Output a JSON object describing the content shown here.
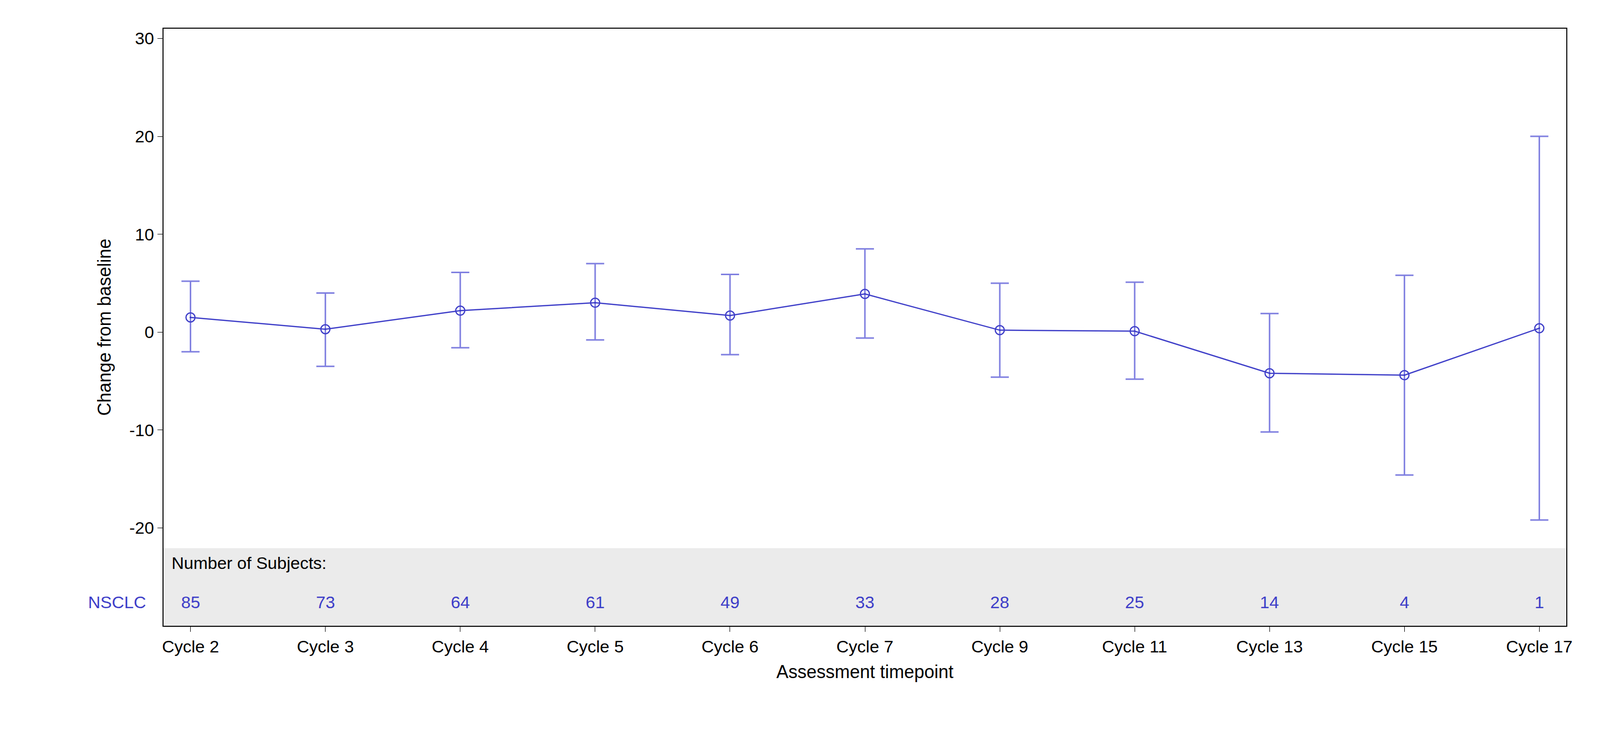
{
  "chart_data": {
    "type": "line",
    "x_label": "Assessment timepoint",
    "y_label": "Change from baseline",
    "categories": [
      "Cycle 2",
      "Cycle 3",
      "Cycle 4",
      "Cycle 5",
      "Cycle 6",
      "Cycle 7",
      "Cycle 9",
      "Cycle 11",
      "Cycle 13",
      "Cycle 15",
      "Cycle 17"
    ],
    "series": [
      {
        "name": "NSCLC",
        "color": "#3d3dc8",
        "marker": "open circle",
        "values": [
          1.5,
          0.3,
          2.2,
          3.0,
          1.7,
          3.9,
          0.2,
          0.1,
          -4.2,
          -4.4,
          0.4
        ],
        "ci_lower": [
          -2.0,
          -3.5,
          -1.6,
          -0.8,
          -2.3,
          -0.6,
          -4.6,
          -4.8,
          -10.2,
          -14.6,
          -19.2
        ],
        "ci_upper": [
          5.2,
          4.0,
          6.1,
          7.0,
          5.9,
          8.5,
          5.0,
          5.1,
          1.9,
          5.8,
          20.0
        ]
      }
    ],
    "subject_counts": {
      "label": "Number of Subjects:",
      "group": "NSCLC",
      "values": [
        85,
        73,
        64,
        61,
        49,
        33,
        28,
        25,
        14,
        4,
        1
      ]
    },
    "ylim": [
      -30,
      31
    ],
    "yticks": [
      -20,
      -10,
      0,
      10,
      20,
      30
    ],
    "grid": false
  }
}
